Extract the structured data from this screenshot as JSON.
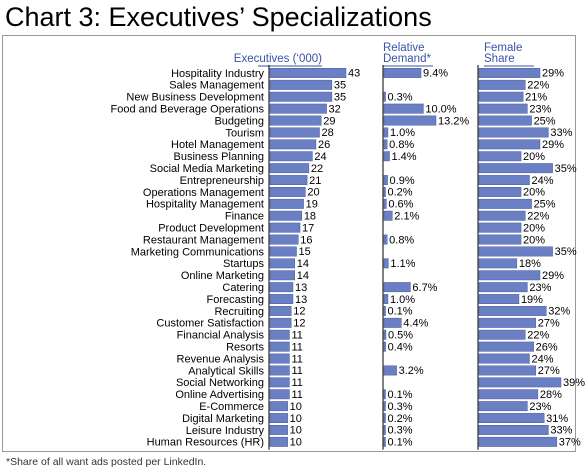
{
  "title": "Chart 3: Executives’ Specializations",
  "footnote": "*Share of all want ads posted per LinkedIn.",
  "colors": {
    "bar": "#6a7fc4",
    "bar_border": "#4a5c9e",
    "header": "#3a52a8",
    "axis": "#000000"
  },
  "chart_data": {
    "type": "bar",
    "orientation": "horizontal",
    "categories": [
      "Hospitality Industry",
      "Sales Management",
      "New Business Development",
      "Food and Beverage Operations",
      "Budgeting",
      "Tourism",
      "Hotel Management",
      "Business Planning",
      "Social Media Marketing",
      "Entrepreneurship",
      "Operations Management",
      "Hospitality Management",
      "Finance",
      "Product Development",
      "Restaurant Management",
      "Marketing Communications",
      "Startups",
      "Online Marketing",
      "Catering",
      "Forecasting",
      "Recruiting",
      "Customer Satisfaction",
      "Financial Analysis",
      "Resorts",
      "Revenue Analysis",
      "Analytical Skills",
      "Social Networking",
      "Online Advertising",
      "E-Commerce",
      "Digital Marketing",
      "Leisure Industry",
      "Human Resources (HR)"
    ],
    "series": [
      {
        "name": "Executives (‘000)",
        "max": 43,
        "values": [
          43,
          35,
          35,
          32,
          29,
          28,
          26,
          24,
          22,
          21,
          20,
          19,
          18,
          17,
          16,
          15,
          14,
          14,
          13,
          13,
          12,
          12,
          11,
          11,
          11,
          11,
          11,
          11,
          10,
          10,
          10,
          10
        ],
        "labels": [
          "43",
          "35",
          "35",
          "32",
          "29",
          "28",
          "26",
          "24",
          "22",
          "21",
          "20",
          "19",
          "18",
          "17",
          "16",
          "15",
          "14",
          "14",
          "13",
          "13",
          "12",
          "12",
          "11",
          "11",
          "11",
          "11",
          "11",
          "11",
          "10",
          "10",
          "10",
          "10"
        ]
      },
      {
        "name": "Relative Demand*",
        "header": [
          "Relative",
          "Demand*"
        ],
        "max": 13.2,
        "values": [
          9.4,
          null,
          0.3,
          10.0,
          13.2,
          1.0,
          0.8,
          1.4,
          null,
          0.9,
          0.2,
          0.6,
          2.1,
          null,
          0.8,
          null,
          1.1,
          null,
          6.7,
          1.0,
          0.1,
          4.4,
          0.5,
          0.4,
          null,
          3.2,
          null,
          0.1,
          0.3,
          0.2,
          0.3,
          0.1
        ],
        "labels": [
          "9.4%",
          "",
          "0.3%",
          "10.0%",
          "13.2%",
          "1.0%",
          "0.8%",
          "1.4%",
          "",
          "0.9%",
          "0.2%",
          "0.6%",
          "2.1%",
          "",
          "0.8%",
          "",
          "1.1%",
          "",
          "6.7%",
          "1.0%",
          "0.1%",
          "4.4%",
          "0.5%",
          "0.4%",
          "",
          "3.2%",
          "",
          "0.1%",
          "0.3%",
          "0.2%",
          "0.3%",
          "0.1%"
        ]
      },
      {
        "name": "Female Share",
        "header": [
          "Female",
          "Share"
        ],
        "max": 39,
        "values": [
          29,
          22,
          21,
          23,
          25,
          33,
          29,
          20,
          35,
          24,
          20,
          25,
          22,
          20,
          20,
          35,
          18,
          29,
          23,
          19,
          32,
          27,
          22,
          26,
          24,
          27,
          39,
          28,
          23,
          31,
          33,
          37
        ],
        "labels": [
          "29%",
          "22%",
          "21%",
          "23%",
          "25%",
          "33%",
          "29%",
          "20%",
          "35%",
          "24%",
          "20%",
          "25%",
          "22%",
          "20%",
          "20%",
          "35%",
          "18%",
          "29%",
          "23%",
          "19%",
          "32%",
          "27%",
          "22%",
          "26%",
          "24%",
          "27%",
          "39%",
          "28%",
          "23%",
          "31%",
          "33%",
          "37%"
        ]
      }
    ]
  }
}
